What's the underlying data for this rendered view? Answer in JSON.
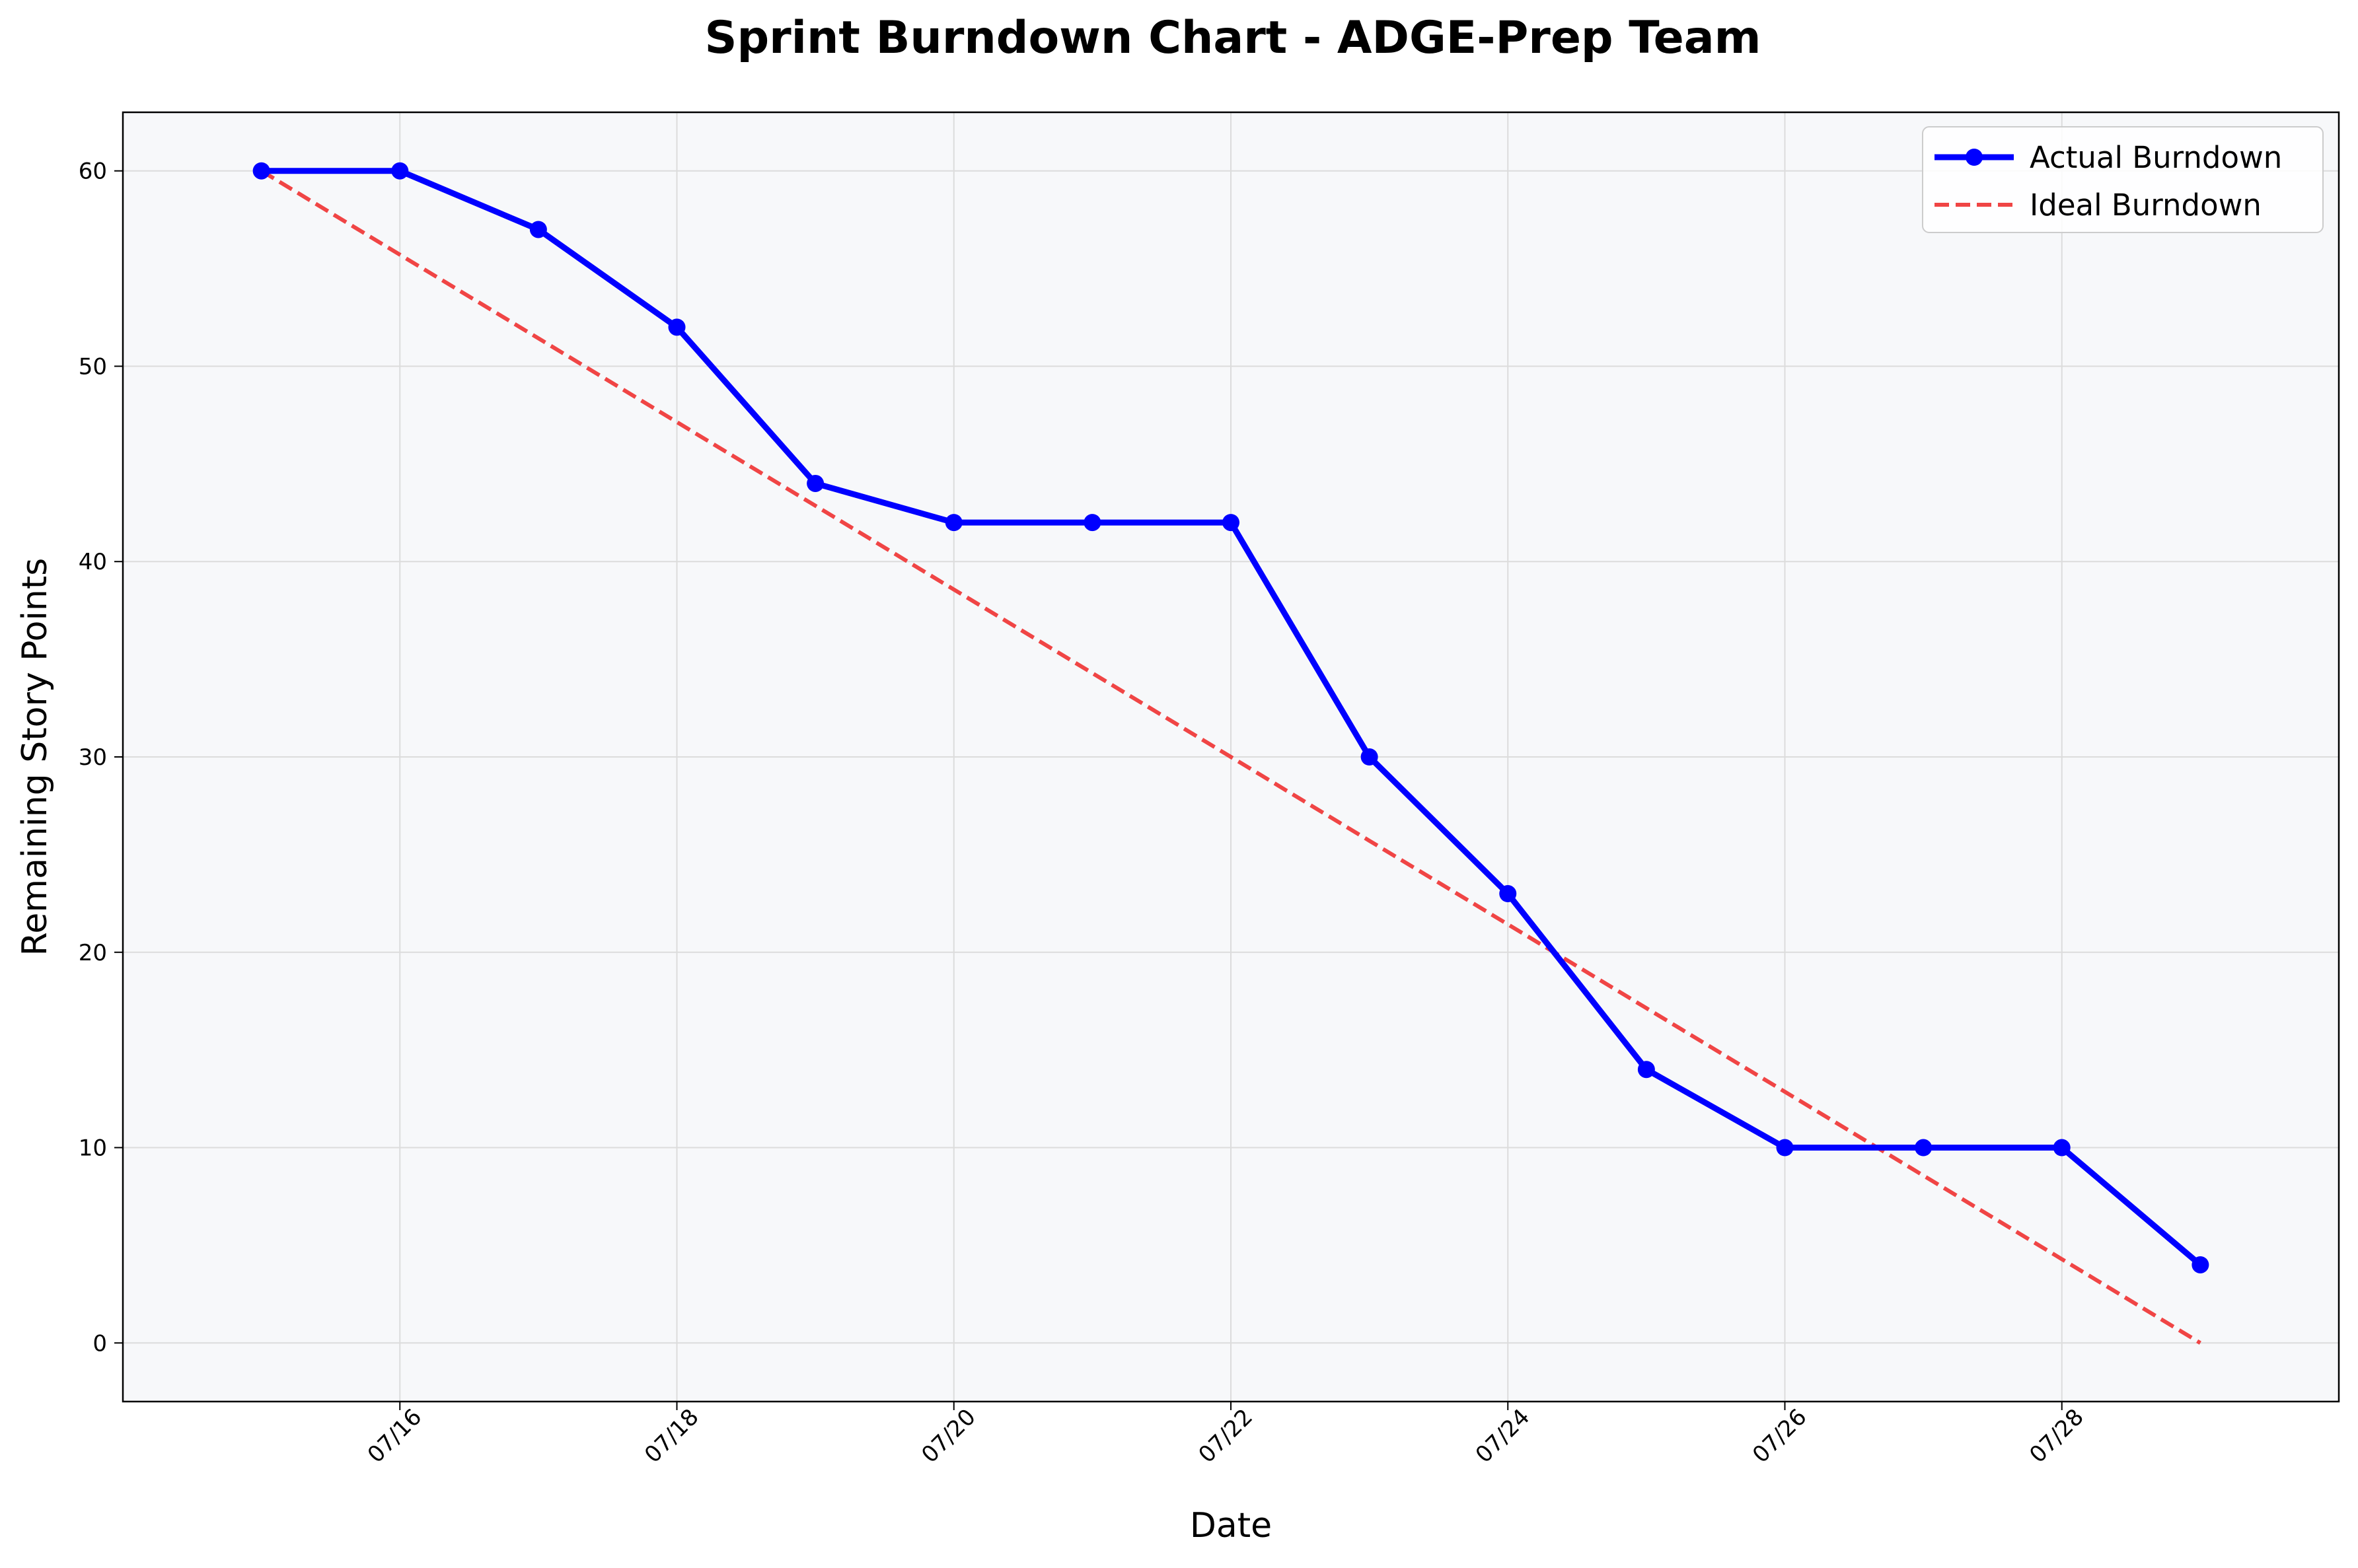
{
  "chart_data": {
    "type": "line",
    "title": "Sprint Burndown Chart - ADGE-Prep Team",
    "xlabel": "Date",
    "ylabel": "Remaining Story Points",
    "x": [
      "07/15",
      "07/16",
      "07/17",
      "07/18",
      "07/19",
      "07/20",
      "07/21",
      "07/22",
      "07/23",
      "07/24",
      "07/25",
      "07/26",
      "07/27",
      "07/28",
      "07/29"
    ],
    "x_ticks": [
      "07/16",
      "07/18",
      "07/20",
      "07/22",
      "07/24",
      "07/26",
      "07/28"
    ],
    "y_ticks": [
      0,
      10,
      20,
      30,
      40,
      50,
      60
    ],
    "ylim": [
      -3,
      63
    ],
    "xlim": [
      "07/14",
      "07/30"
    ],
    "grid": true,
    "legend_position": "top-right",
    "series": [
      {
        "name": "Actual Burndown",
        "color": "#0000ff",
        "style": "solid",
        "markers": true,
        "values": [
          60,
          60,
          57,
          52,
          44,
          42,
          42,
          42,
          30,
          23,
          14,
          10,
          10,
          10,
          4
        ]
      },
      {
        "name": "Ideal Burndown",
        "color": "#f04545",
        "style": "dashed",
        "markers": false,
        "values": [
          60,
          55.71,
          51.43,
          47.14,
          42.86,
          38.57,
          34.29,
          30,
          25.71,
          21.43,
          17.14,
          12.86,
          8.57,
          4.29,
          0
        ]
      }
    ],
    "colors": {
      "plot_background": "#f7f8fa",
      "grid": "#dcdcdc"
    }
  }
}
